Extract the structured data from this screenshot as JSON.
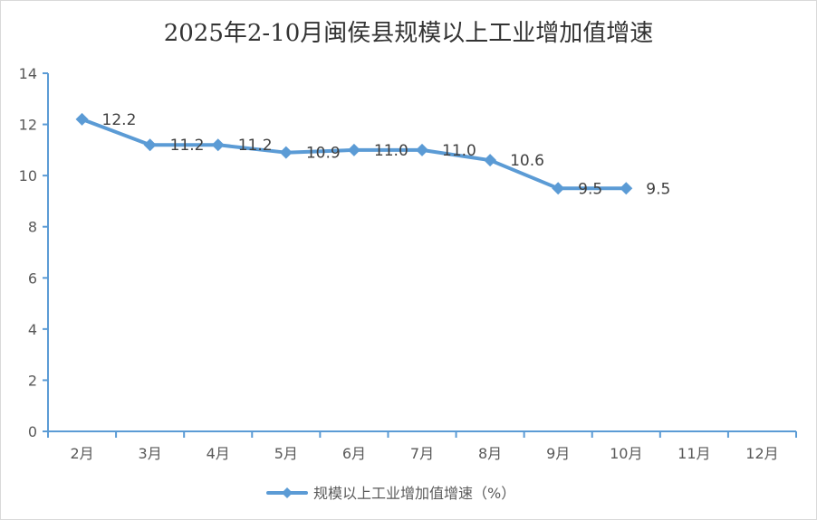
{
  "chart_data": {
    "type": "line",
    "title": "2025年2-10月闽侯县规模以上工业增加值增速",
    "categories": [
      "2月",
      "3月",
      "4月",
      "5月",
      "6月",
      "7月",
      "8月",
      "9月",
      "10月",
      "11月",
      "12月"
    ],
    "series": [
      {
        "name": "规模以上工业增加值增速（%）",
        "values": [
          12.2,
          11.2,
          11.2,
          10.9,
          11.0,
          11.0,
          10.6,
          9.5,
          9.5,
          null,
          null
        ],
        "labels": [
          "12.2",
          "11.2",
          "11.2",
          "10.9",
          "11.0",
          "11.0",
          "10.6",
          "9.5",
          "9.5",
          "",
          ""
        ],
        "color": "#5b9bd5",
        "marker": "diamond"
      }
    ],
    "ylim": [
      0,
      14
    ],
    "yticks": [
      "0",
      "2",
      "4",
      "6",
      "8",
      "10",
      "12",
      "14"
    ],
    "grid": false,
    "legend_position": "bottom"
  }
}
